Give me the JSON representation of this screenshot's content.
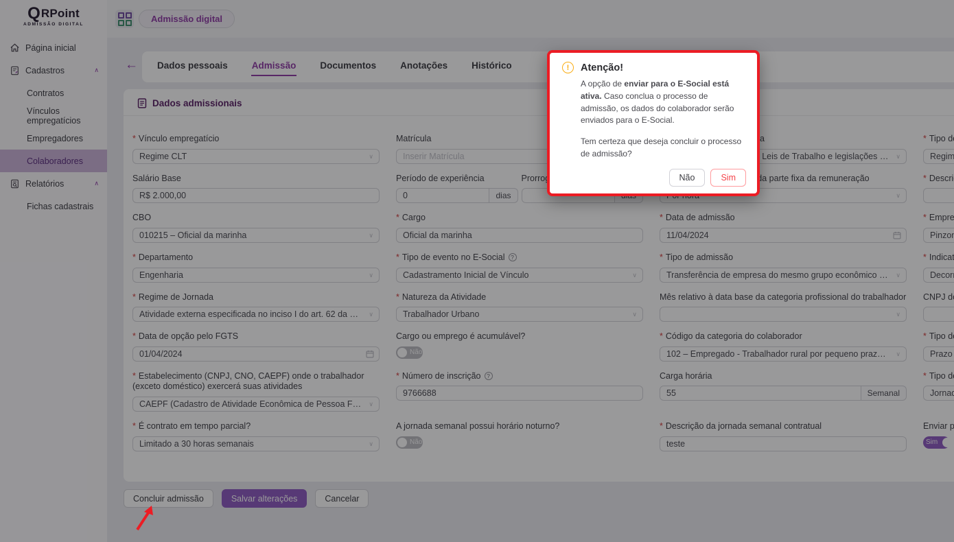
{
  "brand": {
    "q": "Q",
    "name": "RPoint",
    "subtitle": "ADMISSÃO DIGITAL"
  },
  "topbar": {
    "app_pill": "Admissão digital"
  },
  "sidebar": {
    "items": [
      {
        "label": "Página inicial",
        "icon": "home-icon",
        "level": 0,
        "group": false,
        "active": false
      },
      {
        "label": "Cadastros",
        "icon": "form-icon",
        "level": 0,
        "group": true,
        "active": false
      },
      {
        "label": "Contratos",
        "level": 1,
        "group": false,
        "active": false
      },
      {
        "label": "Vínculos empregatícios",
        "level": 1,
        "group": false,
        "active": false
      },
      {
        "label": "Empregadores",
        "level": 1,
        "group": false,
        "active": false
      },
      {
        "label": "Colaboradores",
        "level": 1,
        "group": false,
        "active": true
      },
      {
        "label": "Relatórios",
        "icon": "report-icon",
        "level": 0,
        "group": true,
        "active": false
      },
      {
        "label": "Fichas cadastrais",
        "level": 1,
        "group": false,
        "active": false
      }
    ]
  },
  "tabs": {
    "items": [
      {
        "label": "Dados pessoais",
        "active": false
      },
      {
        "label": "Admissão",
        "active": true
      },
      {
        "label": "Documentos",
        "active": false
      },
      {
        "label": "Anotações",
        "active": false
      },
      {
        "label": "Histórico",
        "active": false
      }
    ]
  },
  "section_title": "Dados admissionais",
  "form": {
    "fields": [
      {
        "key": "vinculo-empregaticio",
        "col": 1,
        "row": 1,
        "label": "Vínculo empregatício",
        "required": true,
        "type": "select",
        "value": "Regime CLT"
      },
      {
        "key": "matricula",
        "col": 2,
        "row": 1,
        "label": "Matrícula",
        "required": false,
        "type": "input",
        "value": "",
        "placeholder": "Inserir Matrícula"
      },
      {
        "key": "tipo-regime-trabalhista",
        "col": 3,
        "row": 1,
        "label": "Tipo de regime trabalhista",
        "required": true,
        "type": "select",
        "value": "CLT – Consolidação das Leis de Trabalho e legislações trabalhistas específicas"
      },
      {
        "key": "tipo-regime-previdenciario",
        "col": 4,
        "row": 1,
        "label": "Tipo de regime previdenciário",
        "required": true,
        "type": "select",
        "value": "Regime Geral de Previdência Social"
      },
      {
        "key": "salario-base",
        "col": 1,
        "row": 2,
        "label": "Salário Base",
        "required": false,
        "type": "input",
        "value": "R$ 2.000,00"
      },
      {
        "key": "experiencia",
        "col": 2,
        "row": 2,
        "type": "pair",
        "parts": [
          {
            "label": "Período de experiência",
            "value": "0",
            "suffix": "dias"
          },
          {
            "label": "Prorrogação da experiência",
            "value": "",
            "suffix": "dias"
          }
        ]
      },
      {
        "key": "unidade-pagamento",
        "col": 3,
        "row": 2,
        "label": "Unidade de pagamento da parte fixa da remuneração",
        "required": true,
        "type": "select",
        "value": "Por hora"
      },
      {
        "key": "descricao-salario-variavel",
        "col": 4,
        "row": 2,
        "label": "Descrição do salário variável",
        "required": true,
        "type": "input",
        "value": ""
      },
      {
        "key": "cbo",
        "col": 1,
        "row": 3,
        "label": "CBO",
        "required": false,
        "type": "select",
        "value": "010215 – Oficial da marinha"
      },
      {
        "key": "cargo",
        "col": 2,
        "row": 3,
        "label": "Cargo",
        "required": true,
        "type": "input",
        "value": "Oficial da marinha"
      },
      {
        "key": "data-admissao",
        "col": 3,
        "row": 3,
        "label": "Data de admissão",
        "required": true,
        "type": "date",
        "value": "11/04/2024"
      },
      {
        "key": "empregador",
        "col": 4,
        "row": 3,
        "label": "Empregador",
        "required": true,
        "type": "select",
        "value": "Pinzon E"
      },
      {
        "key": "departamento",
        "col": 1,
        "row": 4,
        "label": "Departamento",
        "required": true,
        "type": "select",
        "value": "Engenharia"
      },
      {
        "key": "tipo-evento-esocial",
        "col": 2,
        "row": 4,
        "label": "Tipo de evento no E-Social",
        "required": true,
        "help": true,
        "type": "select",
        "value": "Cadastramento Inicial de Vínculo"
      },
      {
        "key": "tipo-admissao",
        "col": 3,
        "row": 4,
        "label": "Tipo de admissão",
        "required": true,
        "type": "select",
        "value": "Transferência de empresa do mesmo grupo econômico ou transferência"
      },
      {
        "key": "indicativo-admissao",
        "col": 4,
        "row": 4,
        "label": "Indicativo de admissão",
        "required": true,
        "type": "select",
        "value": "Decorrente de ação fiscal"
      },
      {
        "key": "regime-jornada",
        "col": 1,
        "row": 5,
        "label": "Regime de Jornada",
        "required": true,
        "type": "select",
        "value": "Atividade externa especificada no inciso I do art. 62 da CLT"
      },
      {
        "key": "natureza-atividade",
        "col": 2,
        "row": 5,
        "label": "Natureza da Atividade",
        "required": true,
        "type": "select",
        "value": "Trabalhador Urbano"
      },
      {
        "key": "mes-data-base",
        "col": 3,
        "row": 5,
        "label": "Mês relativo à data base da categoria profissional do trabalhador",
        "required": false,
        "type": "select",
        "value": ""
      },
      {
        "key": "cnpj-sindicato",
        "col": 4,
        "row": 5,
        "label": "CNPJ do sindicato",
        "required": false,
        "type": "input",
        "value": ""
      },
      {
        "key": "data-opcao-fgts",
        "col": 1,
        "row": 6,
        "label": "Data de opção pelo FGTS",
        "required": true,
        "type": "date",
        "value": "01/04/2024"
      },
      {
        "key": "cargo-acumulavel",
        "col": 2,
        "row": 6,
        "label": "Cargo ou emprego é acumulável?",
        "required": false,
        "type": "toggle",
        "on": false,
        "toggle_label": "Não"
      },
      {
        "key": "codigo-categoria",
        "col": 3,
        "row": 6,
        "label": "Código da categoria do colaborador",
        "required": true,
        "type": "select",
        "value": "102 – Empregado - Trabalhador rural por pequeno prazo da Lei 11.718/2008"
      },
      {
        "key": "tipo-contrato",
        "col": 4,
        "row": 6,
        "label": "Tipo de contrato",
        "required": true,
        "type": "select",
        "value": "Prazo indeterminado"
      },
      {
        "key": "estabelecimento",
        "col": 1,
        "row": 7,
        "label": "Estabelecimento (CNPJ, CNO, CAEPF) onde o trabalhador (exceto doméstico) exercerá suas atividades",
        "required": true,
        "type": "select",
        "value": "CAEPF (Cadastro de Atividade Econômica de Pessoa Física)"
      },
      {
        "key": "numero-inscricao",
        "col": 2,
        "row": 7,
        "label": "Número de inscrição",
        "required": true,
        "help": true,
        "type": "input",
        "value": "9766688"
      },
      {
        "key": "carga-horaria",
        "col": 3,
        "row": 7,
        "label": "Carga horária",
        "required": false,
        "type": "input-suffix",
        "value": "55",
        "suffix": "Semanal"
      },
      {
        "key": "tipo-jornada",
        "col": 4,
        "row": 7,
        "label": "Tipo de jornada",
        "required": true,
        "type": "select",
        "value": "Jornada semanal"
      },
      {
        "key": "contrato-tempo-parcial",
        "col": 1,
        "row": 8,
        "label": "É contrato em tempo parcial?",
        "required": true,
        "type": "select",
        "value": "Limitado a 30 horas semanais"
      },
      {
        "key": "jornada-horario-noturno",
        "col": 2,
        "row": 8,
        "label": "A jornada semanal possui horário noturno?",
        "required": false,
        "type": "toggle",
        "on": false,
        "toggle_label": "Não"
      },
      {
        "key": "descricao-jornada",
        "col": 3,
        "row": 8,
        "label": "Descrição da jornada semanal contratual",
        "required": true,
        "type": "input",
        "value": "teste"
      },
      {
        "key": "enviar-esocial",
        "col": 4,
        "row": 8,
        "label": "Enviar para o E-Social",
        "required": false,
        "type": "toggle",
        "on": true,
        "toggle_label": "Sim"
      }
    ]
  },
  "footer": {
    "conclude": "Concluir admissão",
    "save": "Salvar alterações",
    "cancel": "Cancelar"
  },
  "modal": {
    "title": "Atenção!",
    "p1_pre": "A opção de ",
    "p1_bold": "enviar para o E-Social está ativa.",
    "p1_post": " Caso conclua o processo de admissão, os dados do colaborador serão enviados para o E-Social.",
    "p2": "Tem certeza que deseja concluir o processo de admissão?",
    "no": "Não",
    "yes": "Sim"
  },
  "colors": {
    "accent_purple": "#8f3ba6",
    "primary_button": "#8e5bc1",
    "danger_red": "#f5434a",
    "warning_orange": "#faad14",
    "annotation_red": "#ec1c24",
    "active_item_bg": "#cbb4da"
  }
}
